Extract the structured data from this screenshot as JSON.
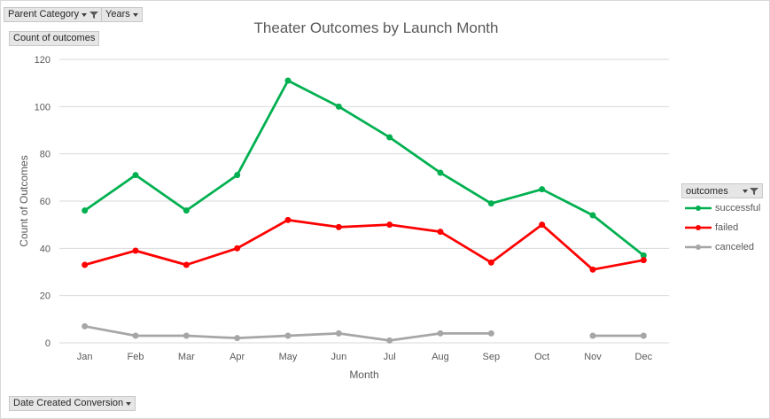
{
  "filters": {
    "parent_category": "Parent Category",
    "years": "Years",
    "value_field": "Count of outcomes",
    "axis_field": "Date Created Conversion"
  },
  "legend": {
    "title": "outcomes",
    "items": [
      {
        "label": "successful",
        "color": "#00b050"
      },
      {
        "label": "failed",
        "color": "#ff0000"
      },
      {
        "label": "canceled",
        "color": "#a6a6a6"
      }
    ]
  },
  "chart_data": {
    "type": "line",
    "title": "Theater Outcomes by Launch Month",
    "xlabel": "Month",
    "ylabel": "Count of Outcomes",
    "categories": [
      "Jan",
      "Feb",
      "Mar",
      "Apr",
      "May",
      "Jun",
      "Jul",
      "Aug",
      "Sep",
      "Oct",
      "Nov",
      "Dec"
    ],
    "ylim": [
      0,
      120
    ],
    "yticks": [
      0,
      20,
      40,
      60,
      80,
      100,
      120
    ],
    "grid": true,
    "legend_position": "right",
    "series": [
      {
        "name": "successful",
        "color": "#00b050",
        "values": [
          56,
          71,
          56,
          71,
          111,
          100,
          87,
          72,
          59,
          65,
          54,
          37
        ]
      },
      {
        "name": "failed",
        "color": "#ff0000",
        "values": [
          33,
          39,
          33,
          40,
          52,
          49,
          50,
          47,
          34,
          50,
          31,
          35
        ]
      },
      {
        "name": "canceled",
        "color": "#a6a6a6",
        "values": [
          7,
          3,
          3,
          2,
          3,
          4,
          1,
          4,
          4,
          null,
          3,
          3
        ]
      }
    ]
  }
}
